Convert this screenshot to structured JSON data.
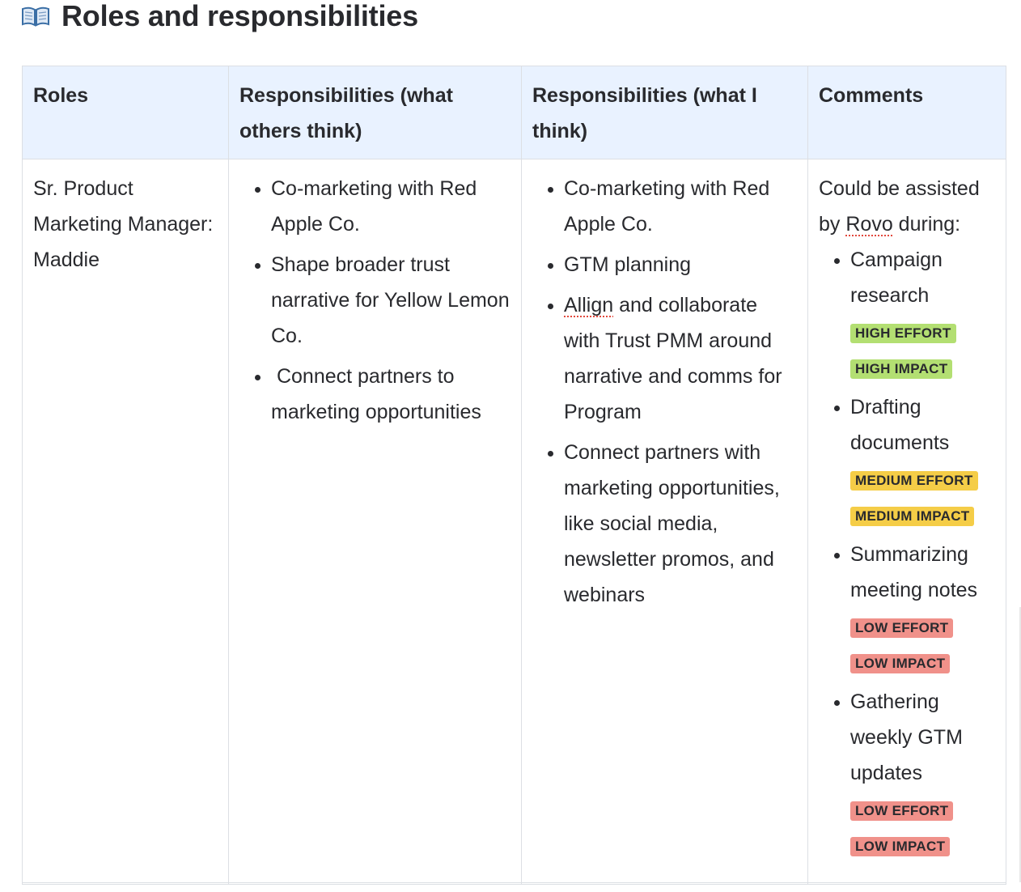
{
  "heading": {
    "icon": "open-book-icon",
    "title": "Roles and responsibilities"
  },
  "table": {
    "headers": [
      "Roles",
      "Responsibilities (what others think)",
      "Responsibilities (what I think)",
      "Comments"
    ],
    "row": {
      "role": "Sr. Product Marketing Manager: Maddie",
      "others_think": [
        "Co-marketing with Red Apple Co.",
        "Shape broader trust narrative for Yellow Lemon Co.",
        " Connect partners to marketing opportunities"
      ],
      "i_think": [
        {
          "pre": "",
          "misspelled": "Allign",
          "post": ""
        },
        "Co-marketing with Red Apple Co.",
        "GTM planning",
        " and collaborate with Trust PMM around narrative and comms for Program",
        "Connect partners with marketing opportunities, like social media, newsletter promos, and webinars"
      ],
      "comments": {
        "intro_pre": "Could be assisted by ",
        "intro_flagged": "Rovo",
        "intro_post": " during:",
        "items": [
          {
            "text": "Campaign research",
            "effort": "HIGH EFFORT",
            "impact": "HIGH IMPACT",
            "level": "high"
          },
          {
            "text": "Drafting documents",
            "effort": "MEDIUM EFFORT",
            "impact": "MEDIUM IMPACT",
            "level": "medium"
          },
          {
            "text": "Summarizing meeting notes",
            "effort": "LOW EFFORT",
            "impact": "LOW IMPACT",
            "level": "low"
          },
          {
            "text": "Gathering weekly GTM updates",
            "effort": "LOW EFFORT",
            "impact": "LOW IMPACT",
            "level": "low"
          }
        ]
      }
    }
  },
  "colors": {
    "header_bg": "#e9f2ff",
    "high": "#b3df72",
    "medium": "#f5cd47",
    "low": "#f0918a",
    "border": "#dcdfe4",
    "spellcheck": "#e2483d"
  }
}
